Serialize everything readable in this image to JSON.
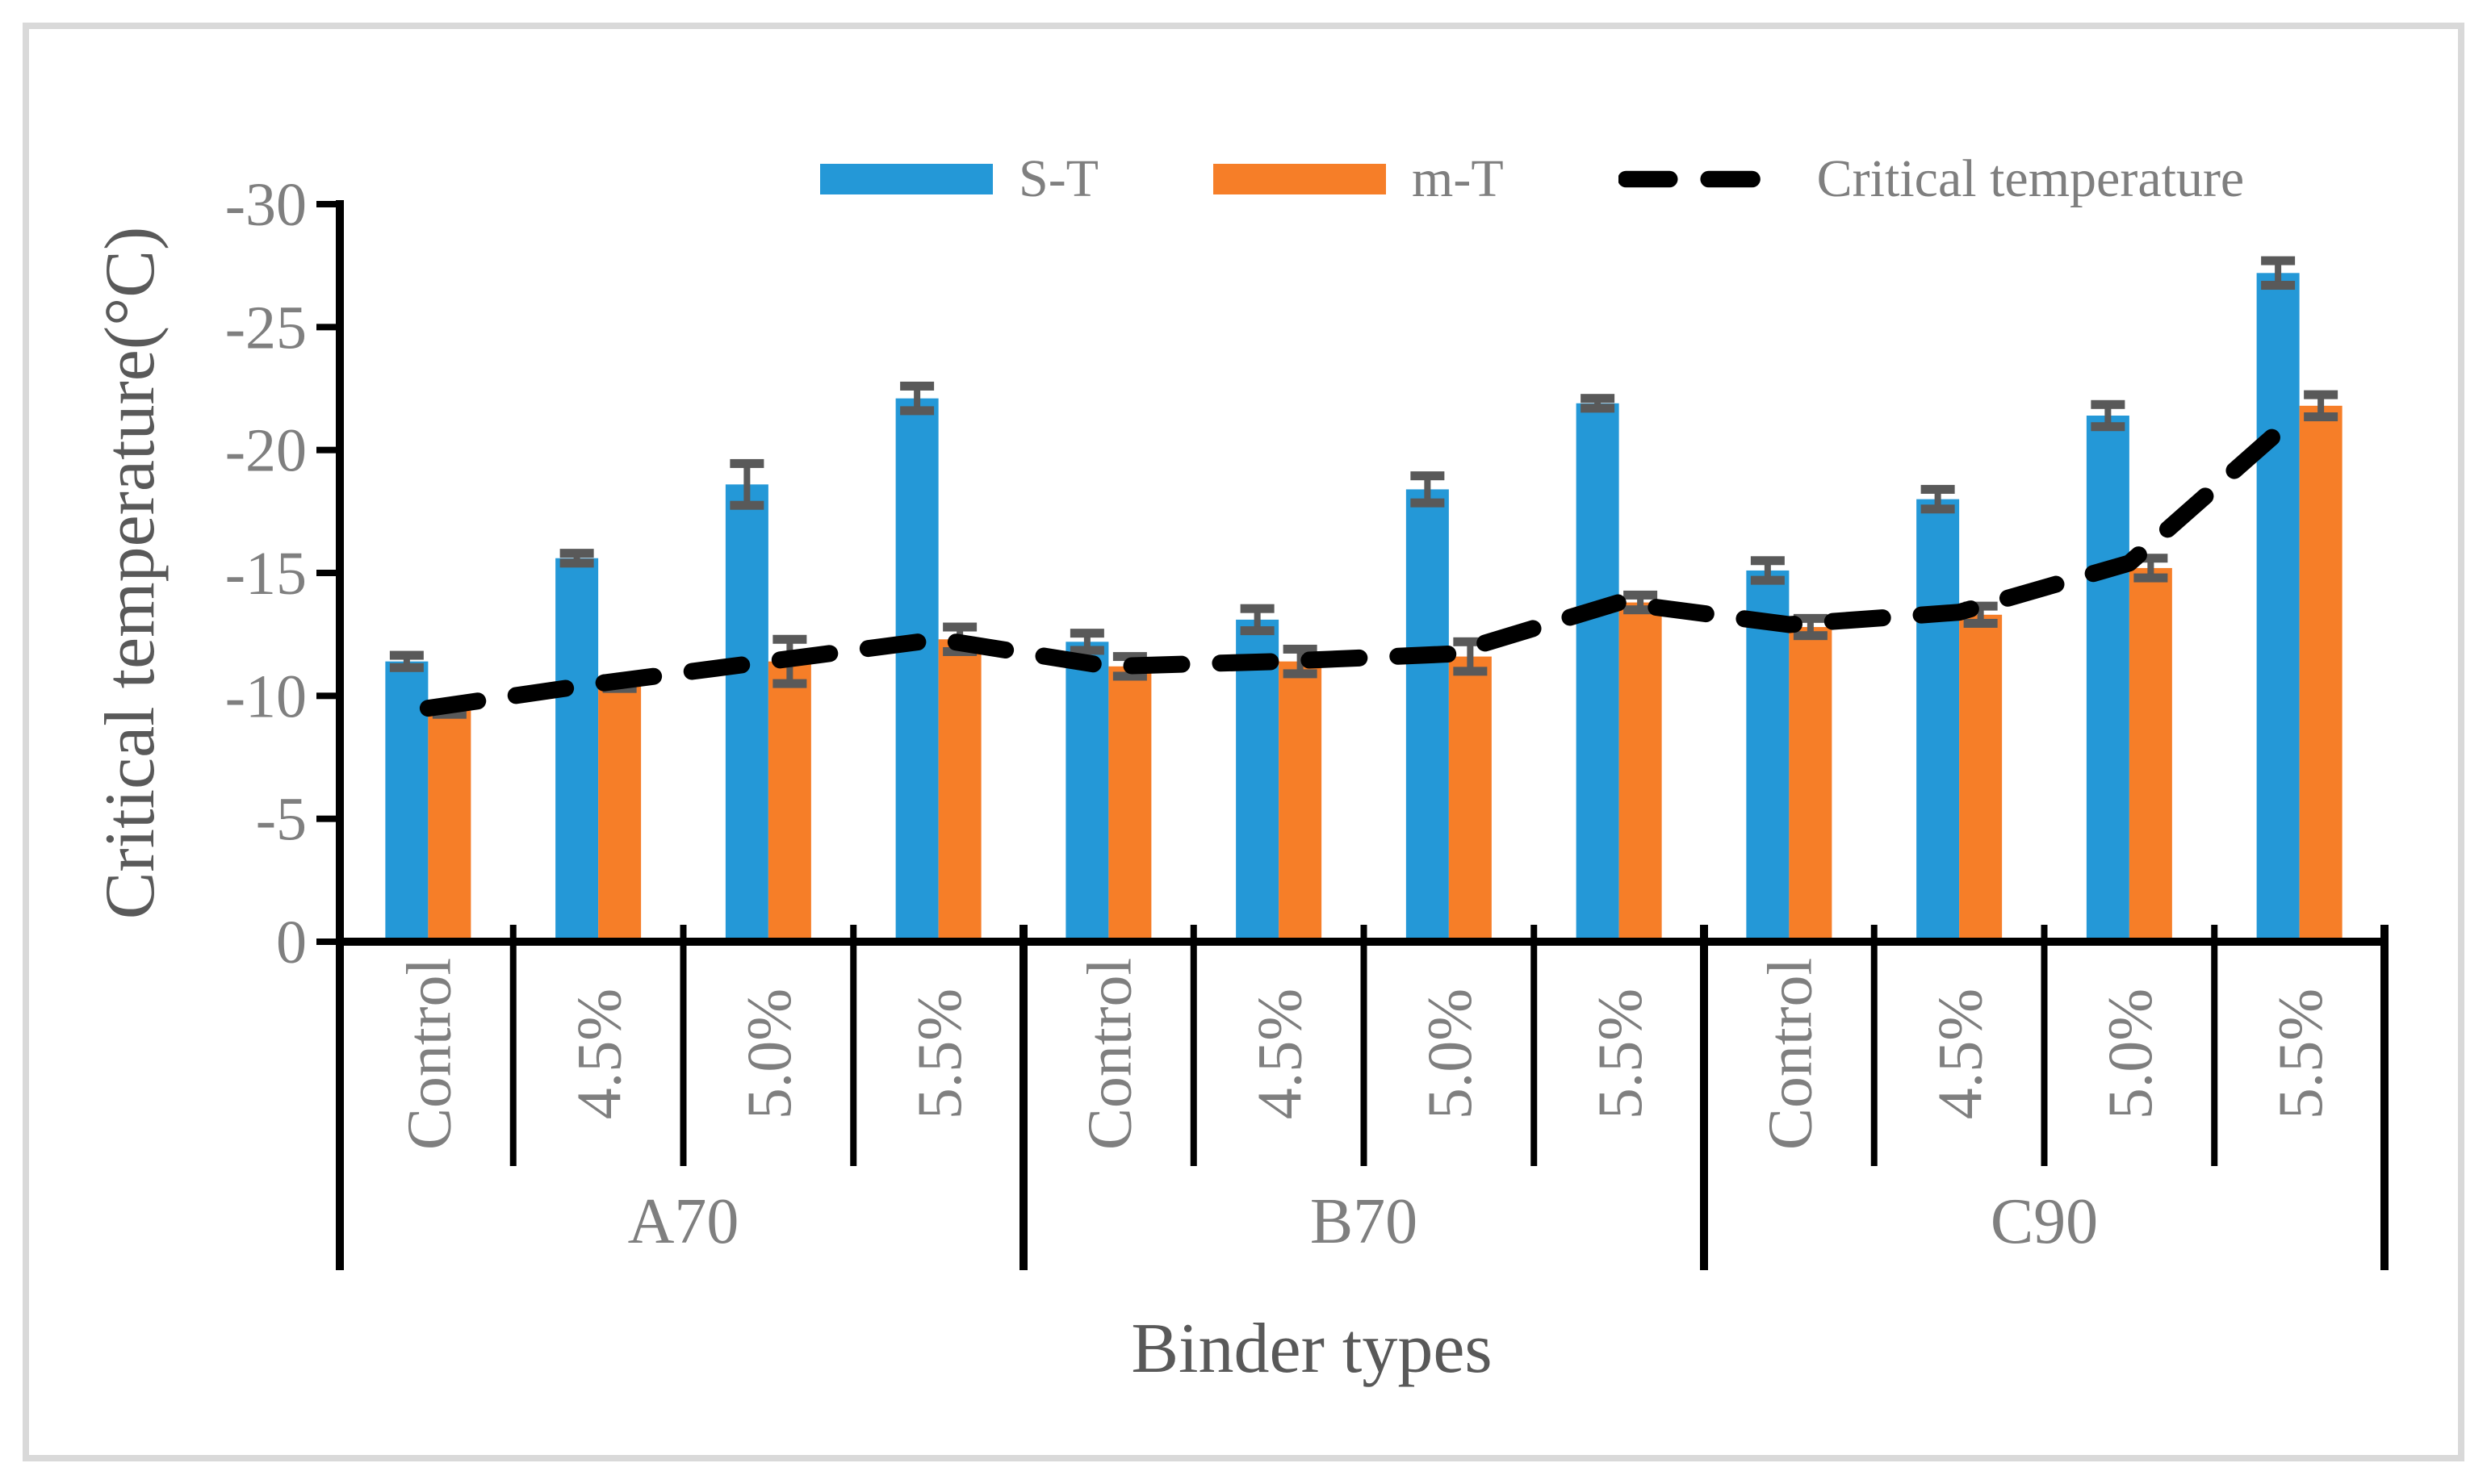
{
  "figure_type": "published-article bar chart",
  "colors": {
    "s_t_bar": "#2498d7",
    "m_t_bar": "#f67e28",
    "critical_line": "#000000",
    "error_bar": "#595959",
    "axis": "#000000",
    "tick_text": "#7f7f7f",
    "title_text": "#595959",
    "figure_border": "#d9d9d9",
    "background": "#ffffff"
  },
  "legend": {
    "position": "top",
    "items": [
      {
        "label": "S-T",
        "marker": "swatch",
        "color": "#2498d7"
      },
      {
        "label": "m-T",
        "marker": "swatch",
        "color": "#f67e28"
      },
      {
        "label": "Critical temperature",
        "marker": "dash",
        "color": "#000000"
      }
    ]
  },
  "chart_data": {
    "type": "bar",
    "title": "",
    "xlabel": "Binder types",
    "ylabel": "Critical temperature(°C)",
    "ylim": [
      0,
      -30
    ],
    "yticks": [
      -30,
      -25,
      -20,
      -15,
      -10,
      -5,
      0
    ],
    "grid": false,
    "legend_position": "top",
    "group_labels": [
      "A70",
      "B70",
      "C90"
    ],
    "categories_per_group": [
      "Control",
      "4.5%",
      "5.0%",
      "5.5%"
    ],
    "categories": [
      "Control",
      "4.5%",
      "5.0%",
      "5.5%",
      "Control",
      "4.5%",
      "5.0%",
      "5.5%",
      "Control",
      "4.5%",
      "5.0%",
      "5.5%"
    ],
    "series": [
      {
        "name": "S-T",
        "type": "bar",
        "color": "#2498d7",
        "values": [
          -11.4,
          -15.6,
          -18.6,
          -22.1,
          -12.2,
          -13.1,
          -18.4,
          -21.9,
          -15.1,
          -18.0,
          -21.4,
          -27.2
        ],
        "errors": [
          0.25,
          0.2,
          0.85,
          0.5,
          0.35,
          0.45,
          0.55,
          0.2,
          0.4,
          0.4,
          0.45,
          0.5
        ]
      },
      {
        "name": "m-T",
        "type": "bar",
        "color": "#f67e28",
        "values": [
          -9.4,
          -10.5,
          -11.4,
          -12.3,
          -11.2,
          -11.4,
          -11.6,
          -13.8,
          -12.8,
          -13.3,
          -15.2,
          -21.8
        ],
        "errors": [
          0.15,
          0.2,
          0.9,
          0.5,
          0.4,
          0.5,
          0.6,
          0.3,
          0.35,
          0.35,
          0.4,
          0.45
        ]
      },
      {
        "name": "Critical temperature",
        "type": "line",
        "dashed": true,
        "color": "#000000",
        "values": [
          -9.5,
          -10.5,
          -11.4,
          -12.3,
          -11.2,
          -11.4,
          -11.7,
          -13.8,
          -12.9,
          -13.4,
          -15.4,
          -21.5
        ]
      }
    ]
  }
}
